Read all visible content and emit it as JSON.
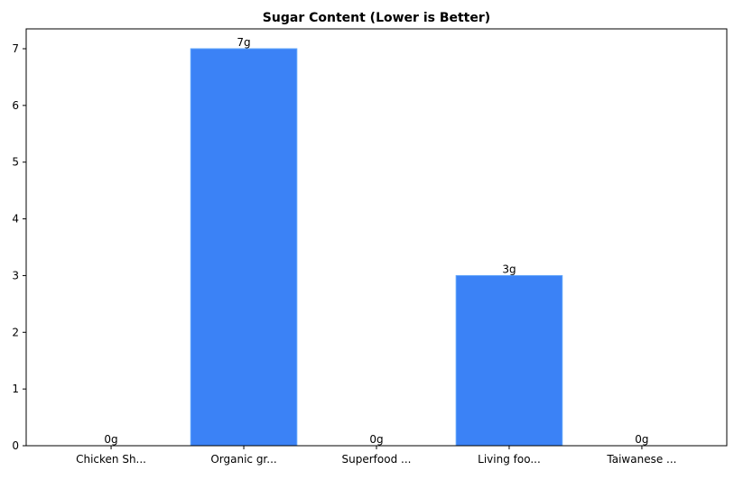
{
  "chart_data": {
    "type": "bar",
    "title": "Sugar Content (Lower is Better)",
    "xlabel": "",
    "ylabel": "",
    "categories": [
      "Chicken Sh...",
      "Organic gr...",
      "Superfood ...",
      "Living foo...",
      "Taiwanese ..."
    ],
    "values": [
      0,
      7,
      0,
      3,
      0
    ],
    "data_labels": [
      "0g",
      "7g",
      "0g",
      "3g",
      "0g"
    ],
    "yticks": [
      0,
      1,
      2,
      3,
      4,
      5,
      6,
      7
    ],
    "ylim": [
      0,
      7.35
    ],
    "grid": false,
    "bar_color": "#3b82f6",
    "bar_edge_color": "#60a5fa"
  }
}
